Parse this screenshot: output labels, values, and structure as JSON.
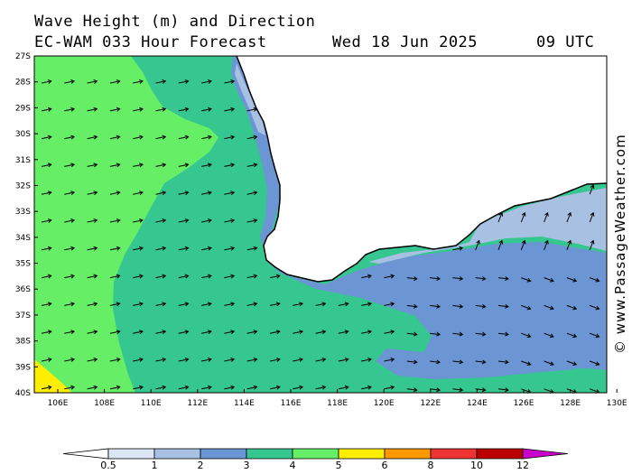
{
  "header": {
    "title": "Wave Height (m) and Direction",
    "model": "EC-WAM 033 Hour Forecast",
    "date": "Wed 18 Jun 2025",
    "time": "09 UTC"
  },
  "credit": "© www.PassageWeather.com",
  "axes": {
    "lat_labels": [
      "27S",
      "28S",
      "29S",
      "30S",
      "31S",
      "32S",
      "33S",
      "34S",
      "35S",
      "36S",
      "37S",
      "38S",
      "39S",
      "40S"
    ],
    "lon_labels": [
      "106E",
      "108E",
      "110E",
      "112E",
      "114E",
      "116E",
      "118E",
      "120E",
      "122E",
      "124E",
      "126E",
      "128E",
      "130E"
    ]
  },
  "legend": {
    "ticks": [
      "0.5",
      "1",
      "2",
      "3",
      "4",
      "5",
      "6",
      "8",
      "10",
      "12"
    ],
    "colors": [
      "#dde6f6",
      "#a8c0e2",
      "#6c95d3",
      "#36c790",
      "#66ef66",
      "#ffee00",
      "#ff9900",
      "#ee3333",
      "#bb0000",
      "#cc00cc"
    ]
  },
  "map": {
    "land_color": "#ffffff",
    "arrow_color": "#000000"
  }
}
